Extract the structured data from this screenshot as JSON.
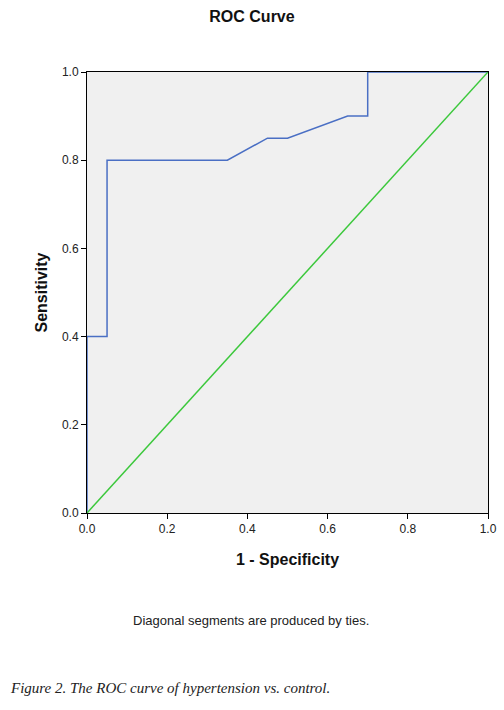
{
  "chart_data": {
    "type": "line",
    "title": "ROC Curve",
    "x_label": "1 - Specificity",
    "y_label": "Sensitivity",
    "annotations": [
      "Diagonal segments are produced by ties.",
      "Figure 2. The ROC curve of hypertension vs. control."
    ],
    "series": [
      {
        "color": "#4a6fc4",
        "line_style": "solid",
        "x": [
          0,
          0,
          0.05,
          0.05,
          0.35,
          0.45,
          0.5,
          0.65,
          0.7,
          0.7,
          1
        ],
        "values": [
          0,
          0.4,
          0.4,
          0.8,
          0.8,
          0.85,
          0.85,
          0.9,
          0.9,
          1,
          1
        ]
      },
      {
        "color": "#3cc83c",
        "line_style": "solid",
        "x": [
          0,
          1
        ],
        "values": [
          0,
          1
        ]
      }
    ],
    "xlim": [
      0,
      1
    ],
    "ylim": [
      0,
      1
    ],
    "xticks": [
      {
        "value": 0,
        "label": "0.0"
      },
      0.2,
      0.4,
      0.6,
      0.8,
      {
        "value": 1,
        "label": "1.0"
      }
    ],
    "yticks": [
      {
        "value": 0,
        "label": "0.0"
      },
      0.2,
      0.4,
      0.6,
      0.8,
      {
        "value": 1,
        "label": "1.0"
      }
    ],
    "grid": false
  }
}
